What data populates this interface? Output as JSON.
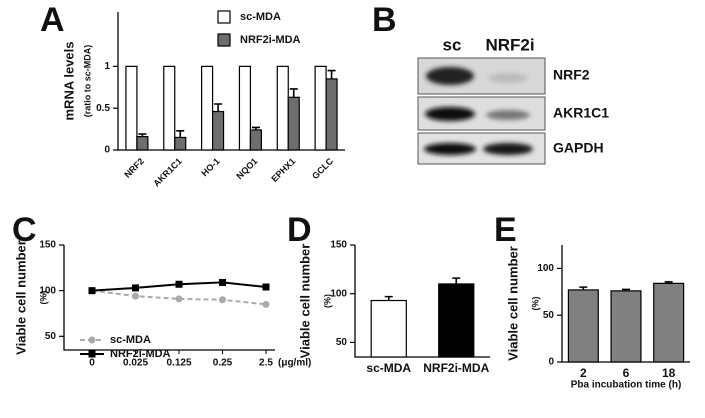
{
  "blot": {
    "panel_label": "B",
    "lanes": [
      "sc",
      "NRF2i"
    ],
    "rows": [
      "NRF2",
      "AKR1C1",
      "GAPDH"
    ]
  },
  "chart_data": [
    {
      "type": "bar",
      "panel_label": "A",
      "ylabel": "mRNA levels",
      "ylabel_sub": "(ratio to sc-MDA)",
      "categories": [
        "NRF2",
        "AKR1C1",
        "HO-1",
        "NQO1",
        "EPHX1",
        "GCLC"
      ],
      "series": [
        {
          "name": "sc-MDA",
          "color": "#ffffff",
          "values": [
            1,
            1,
            1,
            1,
            1,
            1
          ]
        },
        {
          "name": "NRF2i-MDA",
          "color": "#6e6e6e",
          "values": [
            0.16,
            0.15,
            0.46,
            0.24,
            0.63,
            0.85
          ],
          "errors": [
            0.03,
            0.08,
            0.09,
            0.03,
            0.1,
            0.1
          ]
        }
      ],
      "ylim": [
        0,
        1.65
      ],
      "yticks": [
        0,
        0.5,
        1
      ]
    },
    {
      "type": "line",
      "panel_label": "C",
      "ylabel": "Viable cell number",
      "ylabel_sub": "(%)",
      "categories": [
        "0",
        "0.025",
        "0.125",
        "0.25",
        "2.5"
      ],
      "x_unit": "(μg/ml)",
      "series": [
        {
          "name": "sc-MDA",
          "color": "#aaaaaa",
          "dashed": true,
          "marker": "circle",
          "values": [
            100,
            94,
            91,
            90,
            85
          ]
        },
        {
          "name": "NRF2i-MDA",
          "color": "#000000",
          "dashed": false,
          "marker": "square",
          "values": [
            100,
            103,
            107,
            109,
            104
          ]
        }
      ],
      "ylim": [
        35,
        150
      ],
      "yticks": [
        50,
        100,
        150
      ]
    },
    {
      "type": "bar",
      "panel_label": "D",
      "ylabel": "Viable cell number",
      "ylabel_sub": "(%)",
      "categories": [
        "sc-MDA",
        "NRF2i-MDA"
      ],
      "series": [
        {
          "colors": [
            "#ffffff",
            "#000000"
          ],
          "values": [
            93,
            110
          ],
          "errors": [
            4,
            6
          ]
        }
      ],
      "ylim": [
        35,
        150
      ],
      "yticks": [
        50,
        100,
        150
      ]
    },
    {
      "type": "bar",
      "panel_label": "E",
      "ylabel": "Viable cell number",
      "ylabel_sub": "(%)",
      "xlabel": "Pba incubation time (h)",
      "categories": [
        "2",
        "6",
        "18"
      ],
      "series": [
        {
          "color": "#808080",
          "values": [
            77,
            76,
            84
          ],
          "errors": [
            3,
            1.5,
            1.5
          ]
        }
      ],
      "ylim": [
        0,
        125
      ],
      "yticks": [
        0,
        50,
        100
      ]
    }
  ]
}
